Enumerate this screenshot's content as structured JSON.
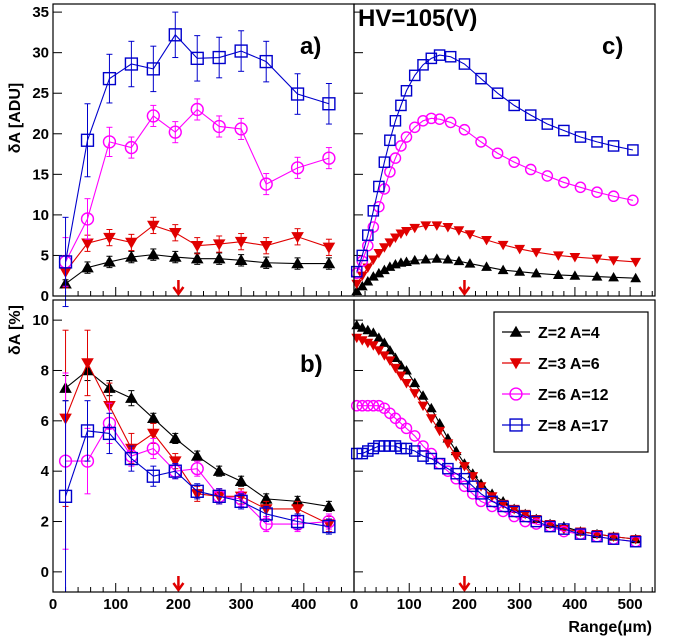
{
  "figure": {
    "hv_label": "HV=105(V)",
    "x_axis_title": "Range(μm)",
    "y_axis_title_top": "δA [ADU]",
    "y_axis_title_bottom": "δA [%]",
    "panel_tags": {
      "a": "a)",
      "b": "b)",
      "c": "c)"
    },
    "marker_arrow_color": "#e00000"
  },
  "legend": [
    {
      "label": "Z=2  A=4",
      "series": "z2"
    },
    {
      "label": "Z=3  A=6",
      "series": "z3"
    },
    {
      "label": "Z=6  A=12",
      "series": "z6"
    },
    {
      "label": "Z=8  A=17",
      "series": "z8"
    }
  ],
  "chart_data": [
    {
      "panel": "a",
      "type": "scatter",
      "ylabel": "δA [ADU]",
      "xlim": [
        0,
        480
      ],
      "ylim": [
        0,
        36
      ],
      "xticks": [
        0,
        100,
        200,
        300,
        400
      ],
      "yticks": [
        0,
        5,
        10,
        15,
        20,
        25,
        30,
        35
      ],
      "arrow_x": 200,
      "series": [
        {
          "id": "z2",
          "name": "Z=2  A=4",
          "color": "#000000",
          "marker": "triangle-up",
          "x": [
            20,
            55,
            90,
            125,
            160,
            195,
            230,
            265,
            300,
            340,
            390,
            440
          ],
          "y": [
            1.5,
            3.5,
            4.2,
            4.8,
            5.1,
            4.8,
            4.6,
            4.6,
            4.4,
            4.1,
            4.0,
            4.0
          ],
          "err": [
            0.5,
            0.7,
            0.7,
            0.7,
            0.7,
            0.7,
            0.7,
            0.7,
            0.7,
            0.7,
            0.7,
            0.7
          ]
        },
        {
          "id": "z3",
          "name": "Z=3  A=6",
          "color": "#e00000",
          "marker": "triangle-down",
          "x": [
            20,
            55,
            90,
            125,
            160,
            195,
            230,
            265,
            300,
            340,
            390,
            440
          ],
          "y": [
            3.0,
            6.5,
            7.2,
            6.6,
            8.7,
            7.8,
            6.2,
            6.4,
            6.7,
            6.2,
            7.3,
            6.0
          ],
          "err": [
            2.0,
            1.0,
            1.0,
            1.0,
            1.0,
            1.0,
            1.0,
            1.0,
            1.0,
            1.0,
            1.0,
            1.0
          ]
        },
        {
          "id": "z6",
          "name": "Z=6  A=12",
          "color": "#ff00ff",
          "marker": "circle-open",
          "x": [
            20,
            55,
            90,
            125,
            160,
            195,
            230,
            265,
            300,
            340,
            390,
            440
          ],
          "y": [
            4.2,
            9.5,
            19.0,
            18.3,
            22.2,
            20.2,
            23.0,
            20.9,
            20.6,
            13.8,
            15.8,
            17.0
          ],
          "err": [
            3.0,
            2.5,
            1.8,
            1.3,
            1.3,
            1.3,
            1.3,
            1.3,
            1.3,
            1.3,
            1.3,
            1.3
          ]
        },
        {
          "id": "z8",
          "name": "Z=8  A=17",
          "color": "#0000cc",
          "marker": "square-open",
          "x": [
            20,
            55,
            90,
            125,
            160,
            195,
            230,
            265,
            300,
            340,
            390,
            440
          ],
          "y": [
            4.2,
            19.2,
            26.8,
            28.6,
            28.0,
            32.2,
            29.3,
            29.4,
            30.2,
            28.9,
            24.9,
            23.7
          ],
          "err": [
            5.5,
            4.5,
            3.0,
            2.8,
            2.8,
            2.8,
            2.8,
            2.5,
            2.5,
            2.5,
            2.5,
            2.5
          ]
        }
      ]
    },
    {
      "panel": "b",
      "type": "scatter",
      "ylabel": "δA [%]",
      "xlim": [
        0,
        480
      ],
      "ylim": [
        -0.8,
        10.8
      ],
      "xticks": [
        0,
        100,
        200,
        300,
        400
      ],
      "yticks": [
        0,
        2,
        4,
        6,
        8,
        10
      ],
      "arrow_x": 200,
      "series": [
        {
          "id": "z2",
          "name": "Z=2  A=4",
          "color": "#000000",
          "marker": "triangle-up",
          "x": [
            20,
            55,
            90,
            125,
            160,
            195,
            230,
            265,
            300,
            340,
            390,
            440
          ],
          "y": [
            7.3,
            8.0,
            7.3,
            6.9,
            6.1,
            5.3,
            4.6,
            4.0,
            3.6,
            2.9,
            2.8,
            2.6
          ],
          "err": [
            0.5,
            0.4,
            0.3,
            0.3,
            0.2,
            0.2,
            0.2,
            0.2,
            0.2,
            0.2,
            0.2,
            0.2
          ]
        },
        {
          "id": "z3",
          "name": "Z=3  A=6",
          "color": "#e00000",
          "marker": "triangle-down",
          "x": [
            20,
            55,
            90,
            125,
            160,
            195,
            230,
            265,
            300,
            340,
            390,
            440
          ],
          "y": [
            6.1,
            8.3,
            6.6,
            4.9,
            5.5,
            4.4,
            3.1,
            3.0,
            3.0,
            2.5,
            2.5,
            1.9
          ],
          "err": [
            3.5,
            1.3,
            0.9,
            0.6,
            0.4,
            0.3,
            0.3,
            0.3,
            0.3,
            0.3,
            0.3,
            0.3
          ]
        },
        {
          "id": "z6",
          "name": "Z=6  A=12",
          "color": "#ff00ff",
          "marker": "circle-open",
          "x": [
            20,
            55,
            90,
            125,
            160,
            195,
            230,
            265,
            300,
            340,
            390,
            440
          ],
          "y": [
            4.4,
            4.4,
            5.9,
            4.6,
            4.9,
            4.0,
            4.1,
            3.0,
            2.9,
            1.9,
            1.9,
            2.0
          ],
          "err": [
            3.5,
            1.3,
            0.8,
            0.4,
            0.4,
            0.3,
            0.3,
            0.3,
            0.3,
            0.3,
            0.3,
            0.3
          ]
        },
        {
          "id": "z8",
          "name": "Z=8  A=17",
          "color": "#0000cc",
          "marker": "square-open",
          "x": [
            20,
            55,
            90,
            125,
            160,
            195,
            230,
            265,
            300,
            340,
            390,
            440
          ],
          "y": [
            3.0,
            5.6,
            5.5,
            4.5,
            3.8,
            4.0,
            3.2,
            3.0,
            2.8,
            2.3,
            2.0,
            1.8
          ],
          "err": [
            3.8,
            1.2,
            0.8,
            0.5,
            0.4,
            0.3,
            0.3,
            0.3,
            0.3,
            0.3,
            0.3,
            0.3
          ]
        }
      ]
    },
    {
      "panel": "c",
      "type": "line",
      "xlim": [
        0,
        545
      ],
      "ylim": [
        0,
        36
      ],
      "xticks": [
        0,
        100,
        200,
        300,
        400,
        500
      ],
      "yticks": [
        0,
        5,
        10,
        15,
        20,
        25,
        30,
        35
      ],
      "arrow_x": 200,
      "series": [
        {
          "id": "z2",
          "name": "Z=2  A=4",
          "color": "#000000",
          "marker": "triangle-up",
          "x": [
            5,
            15,
            25,
            35,
            45,
            55,
            65,
            75,
            85,
            95,
            110,
            130,
            150,
            170,
            190,
            210,
            240,
            270,
            300,
            330,
            370,
            400,
            440,
            470,
            510
          ],
          "y": [
            0.6,
            1.2,
            1.8,
            2.4,
            2.8,
            3.2,
            3.6,
            3.9,
            4.1,
            4.2,
            4.4,
            4.5,
            4.6,
            4.5,
            4.3,
            4.0,
            3.6,
            3.2,
            3.0,
            2.8,
            2.6,
            2.5,
            2.4,
            2.3,
            2.2
          ]
        },
        {
          "id": "z3",
          "name": "Z=3  A=6",
          "color": "#e00000",
          "marker": "triangle-down",
          "x": [
            5,
            15,
            25,
            35,
            45,
            55,
            65,
            75,
            85,
            95,
            110,
            130,
            150,
            170,
            190,
            210,
            240,
            270,
            300,
            330,
            370,
            400,
            440,
            470,
            510
          ],
          "y": [
            1.5,
            2.5,
            3.5,
            4.5,
            5.3,
            6.0,
            6.6,
            7.2,
            7.7,
            8.0,
            8.4,
            8.7,
            8.7,
            8.5,
            8.1,
            7.6,
            6.9,
            6.3,
            5.8,
            5.4,
            5.0,
            4.8,
            4.6,
            4.4,
            4.2
          ]
        },
        {
          "id": "z6",
          "name": "Z=6  A=12",
          "color": "#ff00ff",
          "marker": "circle-open",
          "x": [
            5,
            15,
            25,
            35,
            45,
            55,
            65,
            75,
            85,
            95,
            110,
            125,
            140,
            155,
            175,
            200,
            230,
            260,
            290,
            320,
            350,
            380,
            410,
            440,
            470,
            505
          ],
          "y": [
            2.8,
            4.3,
            6.2,
            8.5,
            11.0,
            13.2,
            15.3,
            17.0,
            18.5,
            19.6,
            20.8,
            21.6,
            21.9,
            21.8,
            21.4,
            20.5,
            19.0,
            17.6,
            16.5,
            15.6,
            14.8,
            14.0,
            13.4,
            12.8,
            12.3,
            11.8
          ]
        },
        {
          "id": "z8",
          "name": "Z=8  A=17",
          "color": "#0000cc",
          "marker": "square-open",
          "x": [
            5,
            15,
            25,
            35,
            45,
            55,
            65,
            75,
            85,
            95,
            110,
            125,
            140,
            155,
            175,
            200,
            230,
            260,
            290,
            320,
            350,
            380,
            410,
            440,
            470,
            505
          ],
          "y": [
            3.0,
            5.0,
            7.5,
            10.5,
            13.5,
            16.5,
            19.2,
            21.6,
            23.5,
            25.3,
            27.2,
            28.5,
            29.3,
            29.7,
            29.5,
            28.6,
            26.8,
            25.0,
            23.5,
            22.3,
            21.2,
            20.4,
            19.6,
            19.0,
            18.5,
            18.0
          ]
        }
      ]
    },
    {
      "panel": "d",
      "type": "line",
      "xlabel": "Range(μm)",
      "xlim": [
        0,
        545
      ],
      "ylim": [
        -0.8,
        10.8
      ],
      "xticks": [
        0,
        100,
        200,
        300,
        400,
        500
      ],
      "yticks": [
        0,
        2,
        4,
        6,
        8,
        10
      ],
      "arrow_x": 200,
      "series": [
        {
          "id": "z2",
          "name": "Z=2  A=4",
          "color": "#000000",
          "marker": "triangle-up",
          "x": [
            5,
            15,
            25,
            35,
            45,
            55,
            65,
            75,
            85,
            95,
            110,
            125,
            140,
            155,
            170,
            185,
            200,
            215,
            230,
            250,
            270,
            290,
            310,
            330,
            355,
            380,
            410,
            440,
            470,
            510
          ],
          "y": [
            9.8,
            9.7,
            9.6,
            9.5,
            9.3,
            9.1,
            8.8,
            8.5,
            8.2,
            8.0,
            7.5,
            7.0,
            6.5,
            5.9,
            5.3,
            4.8,
            4.3,
            3.9,
            3.5,
            3.1,
            2.8,
            2.5,
            2.3,
            2.1,
            1.9,
            1.8,
            1.6,
            1.5,
            1.4,
            1.3
          ]
        },
        {
          "id": "z3",
          "name": "Z=3  A=6",
          "color": "#e00000",
          "marker": "triangle-down",
          "x": [
            5,
            15,
            25,
            35,
            45,
            55,
            65,
            75,
            85,
            95,
            110,
            125,
            140,
            155,
            170,
            185,
            200,
            215,
            230,
            250,
            270,
            290,
            310,
            330,
            355,
            380,
            410,
            440,
            470,
            510
          ],
          "y": [
            9.3,
            9.2,
            9.1,
            9.0,
            8.8,
            8.6,
            8.4,
            8.1,
            7.8,
            7.5,
            7.1,
            6.6,
            6.1,
            5.6,
            5.1,
            4.6,
            4.2,
            3.8,
            3.4,
            3.0,
            2.7,
            2.5,
            2.3,
            2.1,
            1.9,
            1.7,
            1.6,
            1.5,
            1.4,
            1.3
          ]
        },
        {
          "id": "z6",
          "name": "Z=6  A=12",
          "color": "#ff00ff",
          "marker": "circle-open",
          "x": [
            5,
            15,
            25,
            35,
            45,
            55,
            65,
            75,
            85,
            95,
            110,
            125,
            140,
            155,
            170,
            185,
            200,
            215,
            230,
            250,
            270,
            290,
            310,
            330,
            355,
            380,
            410,
            440,
            470,
            510
          ],
          "y": [
            6.6,
            6.6,
            6.6,
            6.6,
            6.6,
            6.5,
            6.3,
            6.1,
            5.9,
            5.7,
            5.4,
            5.0,
            4.7,
            4.3,
            4.0,
            3.7,
            3.4,
            3.1,
            2.8,
            2.6,
            2.4,
            2.2,
            2.0,
            1.9,
            1.8,
            1.6,
            1.5,
            1.4,
            1.3,
            1.2
          ]
        },
        {
          "id": "z8",
          "name": "Z=8  A=17",
          "color": "#0000cc",
          "marker": "square-open",
          "x": [
            5,
            15,
            25,
            35,
            45,
            55,
            65,
            75,
            85,
            95,
            110,
            125,
            140,
            155,
            170,
            185,
            200,
            215,
            230,
            250,
            270,
            290,
            310,
            330,
            355,
            380,
            410,
            440,
            470,
            510
          ],
          "y": [
            4.7,
            4.7,
            4.8,
            4.9,
            5.0,
            5.0,
            5.0,
            5.0,
            4.9,
            4.9,
            4.8,
            4.6,
            4.5,
            4.3,
            4.1,
            3.9,
            3.7,
            3.4,
            3.1,
            2.8,
            2.6,
            2.4,
            2.2,
            2.0,
            1.8,
            1.7,
            1.5,
            1.4,
            1.3,
            1.2
          ]
        }
      ]
    }
  ]
}
